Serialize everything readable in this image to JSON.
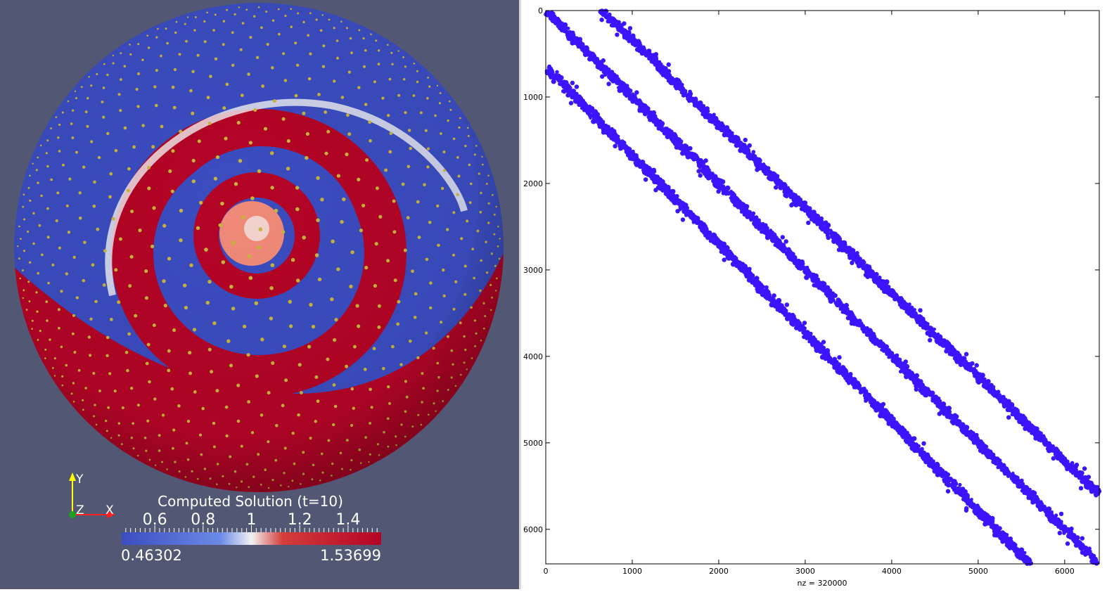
{
  "colors": {
    "background": "#525874",
    "cool": "#3b4cc0",
    "white": "#f2f2f2",
    "warm": "#b40426",
    "nodes": "#c8b43c",
    "spy_markers": "#3c14ff"
  },
  "left_view": {
    "axes_triad": {
      "y_label": "Y",
      "z_label": "Z",
      "x_label": "X"
    },
    "colorbar": {
      "title": "Computed Solution (t=10)",
      "min": 0.46302,
      "max": 1.53699,
      "min_label": "0.46302",
      "max_label": "1.53699",
      "tick_labels": [
        "0.6",
        "0.8",
        "1",
        "1.2",
        "1.4"
      ],
      "tick_values": [
        0.6,
        0.8,
        1.0,
        1.2,
        1.4
      ]
    }
  },
  "chart_data": [
    {
      "type": "heatmap",
      "title": "Computed Solution (t=10)",
      "description_visible": "spiral pattern on sphere colored by solution value",
      "value_range": [
        0.46302,
        1.53699
      ],
      "colorbar_ticks": [
        0.6,
        0.8,
        1.0,
        1.2,
        1.4
      ]
    },
    {
      "type": "scatter",
      "subtype": "sparsity-pattern",
      "xlabel": "nz = 320000",
      "xlim": [
        0,
        6400
      ],
      "ylim": [
        0,
        6400
      ],
      "y_reversed": true,
      "x_ticks": [
        0,
        1000,
        2000,
        3000,
        4000,
        5000,
        6000
      ],
      "y_ticks": [
        0,
        1000,
        2000,
        3000,
        4000,
        5000,
        6000
      ],
      "series": [
        {
          "points": [
            [
              0,
              0
            ],
            [
              6400,
              6400
            ]
          ]
        },
        {
          "points": [
            [
              650,
              0
            ],
            [
              6400,
              5600
            ]
          ]
        },
        {
          "points": [
            [
              0,
              650
            ],
            [
              5600,
              6400
            ]
          ]
        }
      ]
    }
  ]
}
